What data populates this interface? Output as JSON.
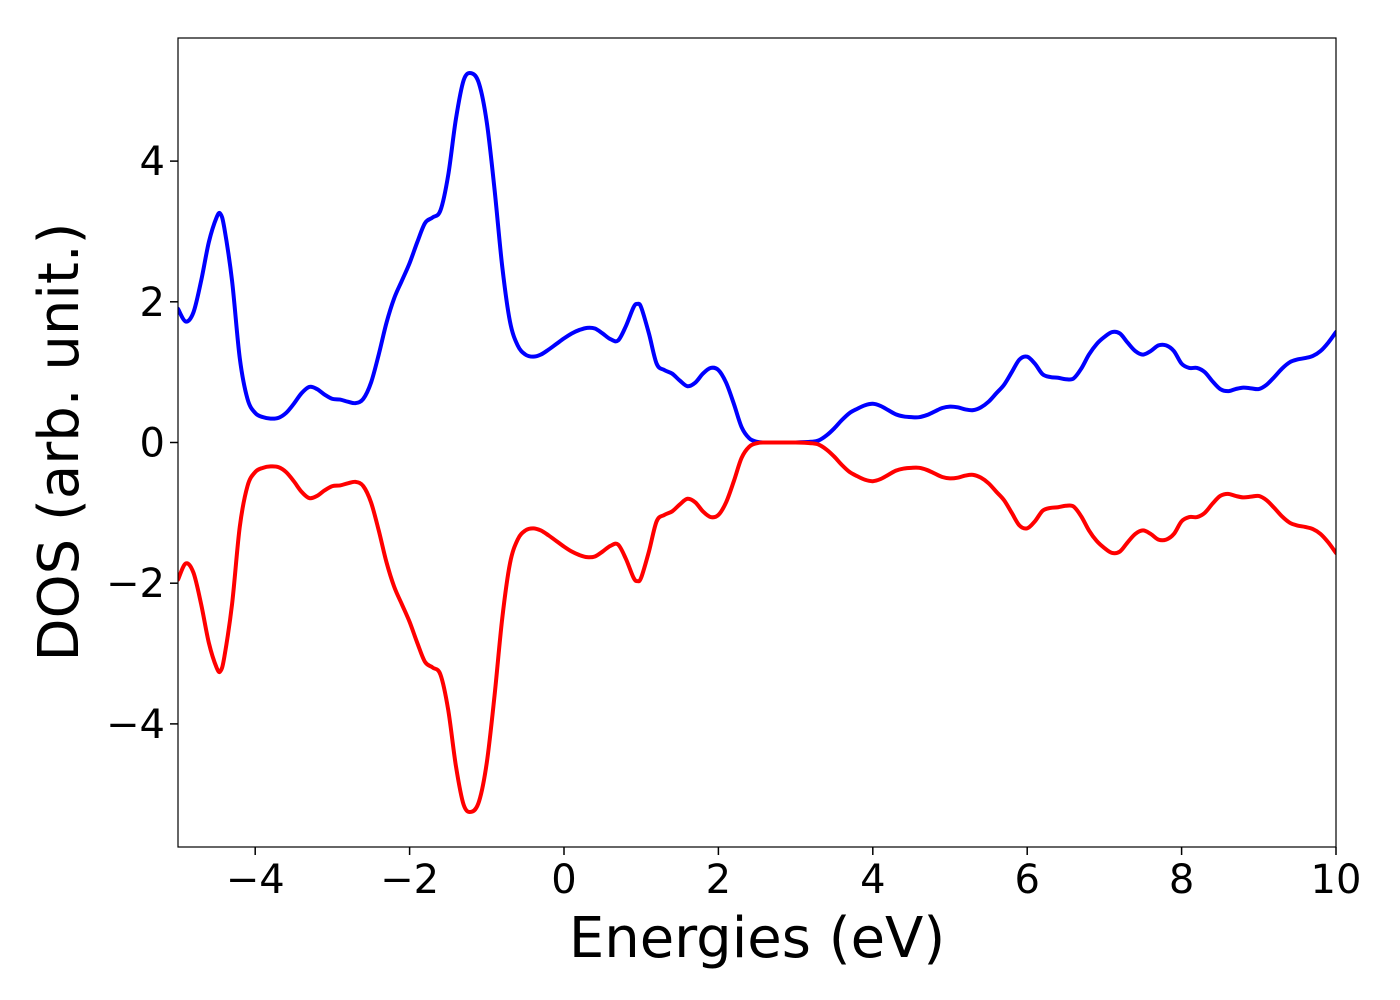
{
  "chart_data": {
    "type": "line",
    "title": "",
    "xlabel": "Energies (eV)",
    "ylabel": "DOS (arb. unit.)",
    "xlim": [
      -5,
      10
    ],
    "ylim": [
      -5.75,
      5.75
    ],
    "xticks": [
      -4,
      -2,
      0,
      2,
      4,
      6,
      8,
      10
    ],
    "xtick_labels": [
      "−4",
      "−2",
      "0",
      "2",
      "4",
      "6",
      "8",
      "10"
    ],
    "yticks": [
      -4,
      -2,
      0,
      2,
      4
    ],
    "ytick_labels": [
      "−4",
      "−2",
      "0",
      "2",
      "4"
    ],
    "grid": false,
    "legend": false,
    "series": [
      {
        "color": "#0000ff",
        "points": [
          [
            -5.0,
            1.9
          ],
          [
            -4.9,
            1.72
          ],
          [
            -4.8,
            1.85
          ],
          [
            -4.7,
            2.3
          ],
          [
            -4.6,
            2.85
          ],
          [
            -4.5,
            3.2
          ],
          [
            -4.45,
            3.25
          ],
          [
            -4.4,
            3.05
          ],
          [
            -4.3,
            2.3
          ],
          [
            -4.2,
            1.2
          ],
          [
            -4.1,
            0.62
          ],
          [
            -4.0,
            0.42
          ],
          [
            -3.9,
            0.36
          ],
          [
            -3.8,
            0.34
          ],
          [
            -3.7,
            0.35
          ],
          [
            -3.6,
            0.42
          ],
          [
            -3.5,
            0.55
          ],
          [
            -3.4,
            0.7
          ],
          [
            -3.3,
            0.79
          ],
          [
            -3.2,
            0.76
          ],
          [
            -3.1,
            0.68
          ],
          [
            -3.0,
            0.62
          ],
          [
            -2.9,
            0.61
          ],
          [
            -2.8,
            0.58
          ],
          [
            -2.7,
            0.56
          ],
          [
            -2.6,
            0.62
          ],
          [
            -2.5,
            0.85
          ],
          [
            -2.4,
            1.25
          ],
          [
            -2.3,
            1.7
          ],
          [
            -2.2,
            2.05
          ],
          [
            -2.1,
            2.3
          ],
          [
            -2.0,
            2.55
          ],
          [
            -1.9,
            2.85
          ],
          [
            -1.8,
            3.12
          ],
          [
            -1.7,
            3.2
          ],
          [
            -1.6,
            3.3
          ],
          [
            -1.5,
            3.8
          ],
          [
            -1.4,
            4.6
          ],
          [
            -1.3,
            5.15
          ],
          [
            -1.2,
            5.25
          ],
          [
            -1.1,
            5.1
          ],
          [
            -1.0,
            4.55
          ],
          [
            -0.9,
            3.6
          ],
          [
            -0.8,
            2.5
          ],
          [
            -0.7,
            1.72
          ],
          [
            -0.6,
            1.38
          ],
          [
            -0.5,
            1.25
          ],
          [
            -0.4,
            1.22
          ],
          [
            -0.3,
            1.25
          ],
          [
            -0.2,
            1.32
          ],
          [
            -0.1,
            1.4
          ],
          [
            0.0,
            1.48
          ],
          [
            0.1,
            1.55
          ],
          [
            0.2,
            1.6
          ],
          [
            0.3,
            1.63
          ],
          [
            0.4,
            1.62
          ],
          [
            0.5,
            1.55
          ],
          [
            0.6,
            1.47
          ],
          [
            0.7,
            1.45
          ],
          [
            0.8,
            1.65
          ],
          [
            0.9,
            1.92
          ],
          [
            0.95,
            1.97
          ],
          [
            1.0,
            1.92
          ],
          [
            1.1,
            1.55
          ],
          [
            1.2,
            1.12
          ],
          [
            1.3,
            1.03
          ],
          [
            1.4,
            0.98
          ],
          [
            1.5,
            0.88
          ],
          [
            1.6,
            0.8
          ],
          [
            1.7,
            0.85
          ],
          [
            1.8,
            0.98
          ],
          [
            1.9,
            1.06
          ],
          [
            2.0,
            1.03
          ],
          [
            2.1,
            0.85
          ],
          [
            2.2,
            0.55
          ],
          [
            2.3,
            0.22
          ],
          [
            2.4,
            0.06
          ],
          [
            2.5,
            0.01
          ],
          [
            2.6,
            0.0
          ],
          [
            2.8,
            0.0
          ],
          [
            3.0,
            0.0
          ],
          [
            3.2,
            0.01
          ],
          [
            3.3,
            0.03
          ],
          [
            3.4,
            0.1
          ],
          [
            3.5,
            0.2
          ],
          [
            3.6,
            0.32
          ],
          [
            3.7,
            0.42
          ],
          [
            3.8,
            0.48
          ],
          [
            3.9,
            0.53
          ],
          [
            4.0,
            0.55
          ],
          [
            4.1,
            0.52
          ],
          [
            4.2,
            0.46
          ],
          [
            4.3,
            0.4
          ],
          [
            4.4,
            0.37
          ],
          [
            4.5,
            0.36
          ],
          [
            4.6,
            0.36
          ],
          [
            4.7,
            0.39
          ],
          [
            4.8,
            0.44
          ],
          [
            4.9,
            0.49
          ],
          [
            5.0,
            0.51
          ],
          [
            5.1,
            0.5
          ],
          [
            5.2,
            0.47
          ],
          [
            5.3,
            0.46
          ],
          [
            5.4,
            0.5
          ],
          [
            5.5,
            0.58
          ],
          [
            5.6,
            0.7
          ],
          [
            5.7,
            0.82
          ],
          [
            5.8,
            1.0
          ],
          [
            5.9,
            1.18
          ],
          [
            6.0,
            1.22
          ],
          [
            6.1,
            1.12
          ],
          [
            6.2,
            0.97
          ],
          [
            6.3,
            0.93
          ],
          [
            6.4,
            0.92
          ],
          [
            6.5,
            0.9
          ],
          [
            6.6,
            0.91
          ],
          [
            6.7,
            1.05
          ],
          [
            6.8,
            1.25
          ],
          [
            6.9,
            1.4
          ],
          [
            7.0,
            1.5
          ],
          [
            7.1,
            1.57
          ],
          [
            7.2,
            1.55
          ],
          [
            7.3,
            1.42
          ],
          [
            7.4,
            1.3
          ],
          [
            7.5,
            1.25
          ],
          [
            7.6,
            1.3
          ],
          [
            7.7,
            1.38
          ],
          [
            7.8,
            1.38
          ],
          [
            7.9,
            1.3
          ],
          [
            8.0,
            1.12
          ],
          [
            8.1,
            1.06
          ],
          [
            8.2,
            1.06
          ],
          [
            8.3,
            1.0
          ],
          [
            8.4,
            0.87
          ],
          [
            8.5,
            0.76
          ],
          [
            8.6,
            0.73
          ],
          [
            8.7,
            0.76
          ],
          [
            8.8,
            0.78
          ],
          [
            8.9,
            0.77
          ],
          [
            9.0,
            0.76
          ],
          [
            9.1,
            0.82
          ],
          [
            9.2,
            0.93
          ],
          [
            9.3,
            1.05
          ],
          [
            9.4,
            1.14
          ],
          [
            9.5,
            1.18
          ],
          [
            9.6,
            1.2
          ],
          [
            9.7,
            1.23
          ],
          [
            9.8,
            1.3
          ],
          [
            9.9,
            1.42
          ],
          [
            10.0,
            1.57
          ]
        ]
      },
      {
        "color": "#ff0000",
        "points": [
          [
            -5.0,
            -1.95
          ],
          [
            -4.9,
            -1.72
          ],
          [
            -4.8,
            -1.85
          ],
          [
            -4.7,
            -2.3
          ],
          [
            -4.6,
            -2.85
          ],
          [
            -4.5,
            -3.2
          ],
          [
            -4.45,
            -3.25
          ],
          [
            -4.4,
            -3.05
          ],
          [
            -4.3,
            -2.3
          ],
          [
            -4.2,
            -1.2
          ],
          [
            -4.1,
            -0.62
          ],
          [
            -4.0,
            -0.42
          ],
          [
            -3.9,
            -0.36
          ],
          [
            -3.8,
            -0.34
          ],
          [
            -3.7,
            -0.35
          ],
          [
            -3.6,
            -0.42
          ],
          [
            -3.5,
            -0.55
          ],
          [
            -3.4,
            -0.7
          ],
          [
            -3.3,
            -0.79
          ],
          [
            -3.2,
            -0.76
          ],
          [
            -3.1,
            -0.68
          ],
          [
            -3.0,
            -0.62
          ],
          [
            -2.9,
            -0.61
          ],
          [
            -2.8,
            -0.58
          ],
          [
            -2.7,
            -0.56
          ],
          [
            -2.6,
            -0.62
          ],
          [
            -2.5,
            -0.85
          ],
          [
            -2.4,
            -1.25
          ],
          [
            -2.3,
            -1.7
          ],
          [
            -2.2,
            -2.05
          ],
          [
            -2.1,
            -2.3
          ],
          [
            -2.0,
            -2.55
          ],
          [
            -1.9,
            -2.85
          ],
          [
            -1.8,
            -3.12
          ],
          [
            -1.7,
            -3.2
          ],
          [
            -1.6,
            -3.3
          ],
          [
            -1.5,
            -3.8
          ],
          [
            -1.4,
            -4.6
          ],
          [
            -1.3,
            -5.15
          ],
          [
            -1.2,
            -5.25
          ],
          [
            -1.1,
            -5.1
          ],
          [
            -1.0,
            -4.55
          ],
          [
            -0.9,
            -3.6
          ],
          [
            -0.8,
            -2.5
          ],
          [
            -0.7,
            -1.72
          ],
          [
            -0.6,
            -1.38
          ],
          [
            -0.5,
            -1.25
          ],
          [
            -0.4,
            -1.22
          ],
          [
            -0.3,
            -1.25
          ],
          [
            -0.2,
            -1.32
          ],
          [
            -0.1,
            -1.4
          ],
          [
            0.0,
            -1.48
          ],
          [
            0.1,
            -1.55
          ],
          [
            0.2,
            -1.6
          ],
          [
            0.3,
            -1.63
          ],
          [
            0.4,
            -1.62
          ],
          [
            0.5,
            -1.55
          ],
          [
            0.6,
            -1.47
          ],
          [
            0.7,
            -1.45
          ],
          [
            0.8,
            -1.65
          ],
          [
            0.9,
            -1.92
          ],
          [
            0.95,
            -1.97
          ],
          [
            1.0,
            -1.92
          ],
          [
            1.1,
            -1.55
          ],
          [
            1.2,
            -1.12
          ],
          [
            1.3,
            -1.03
          ],
          [
            1.4,
            -0.98
          ],
          [
            1.5,
            -0.88
          ],
          [
            1.6,
            -0.8
          ],
          [
            1.7,
            -0.85
          ],
          [
            1.8,
            -0.98
          ],
          [
            1.9,
            -1.06
          ],
          [
            2.0,
            -1.03
          ],
          [
            2.1,
            -0.85
          ],
          [
            2.2,
            -0.55
          ],
          [
            2.3,
            -0.22
          ],
          [
            2.4,
            -0.06
          ],
          [
            2.5,
            -0.01
          ],
          [
            2.6,
            0.0
          ],
          [
            2.8,
            0.0
          ],
          [
            3.0,
            0.0
          ],
          [
            3.2,
            -0.01
          ],
          [
            3.3,
            -0.03
          ],
          [
            3.4,
            -0.1
          ],
          [
            3.5,
            -0.2
          ],
          [
            3.6,
            -0.32
          ],
          [
            3.7,
            -0.42
          ],
          [
            3.8,
            -0.48
          ],
          [
            3.9,
            -0.53
          ],
          [
            4.0,
            -0.55
          ],
          [
            4.1,
            -0.52
          ],
          [
            4.2,
            -0.46
          ],
          [
            4.3,
            -0.4
          ],
          [
            4.4,
            -0.37
          ],
          [
            4.5,
            -0.36
          ],
          [
            4.6,
            -0.36
          ],
          [
            4.7,
            -0.39
          ],
          [
            4.8,
            -0.44
          ],
          [
            4.9,
            -0.49
          ],
          [
            5.0,
            -0.51
          ],
          [
            5.1,
            -0.5
          ],
          [
            5.2,
            -0.47
          ],
          [
            5.3,
            -0.46
          ],
          [
            5.4,
            -0.5
          ],
          [
            5.5,
            -0.58
          ],
          [
            5.6,
            -0.7
          ],
          [
            5.7,
            -0.82
          ],
          [
            5.8,
            -1.0
          ],
          [
            5.9,
            -1.18
          ],
          [
            6.0,
            -1.22
          ],
          [
            6.1,
            -1.12
          ],
          [
            6.2,
            -0.97
          ],
          [
            6.3,
            -0.93
          ],
          [
            6.4,
            -0.92
          ],
          [
            6.5,
            -0.9
          ],
          [
            6.6,
            -0.91
          ],
          [
            6.7,
            -1.05
          ],
          [
            6.8,
            -1.25
          ],
          [
            6.9,
            -1.4
          ],
          [
            7.0,
            -1.5
          ],
          [
            7.1,
            -1.57
          ],
          [
            7.2,
            -1.55
          ],
          [
            7.3,
            -1.42
          ],
          [
            7.4,
            -1.3
          ],
          [
            7.5,
            -1.25
          ],
          [
            7.6,
            -1.3
          ],
          [
            7.7,
            -1.38
          ],
          [
            7.8,
            -1.38
          ],
          [
            7.9,
            -1.3
          ],
          [
            8.0,
            -1.12
          ],
          [
            8.1,
            -1.06
          ],
          [
            8.2,
            -1.06
          ],
          [
            8.3,
            -1.0
          ],
          [
            8.4,
            -0.87
          ],
          [
            8.5,
            -0.76
          ],
          [
            8.6,
            -0.73
          ],
          [
            8.7,
            -0.76
          ],
          [
            8.8,
            -0.78
          ],
          [
            8.9,
            -0.77
          ],
          [
            9.0,
            -0.76
          ],
          [
            9.1,
            -0.82
          ],
          [
            9.2,
            -0.93
          ],
          [
            9.3,
            -1.05
          ],
          [
            9.4,
            -1.14
          ],
          [
            9.5,
            -1.18
          ],
          [
            9.6,
            -1.2
          ],
          [
            9.7,
            -1.23
          ],
          [
            9.8,
            -1.3
          ],
          [
            9.9,
            -1.42
          ],
          [
            10.0,
            -1.57
          ]
        ]
      }
    ]
  }
}
